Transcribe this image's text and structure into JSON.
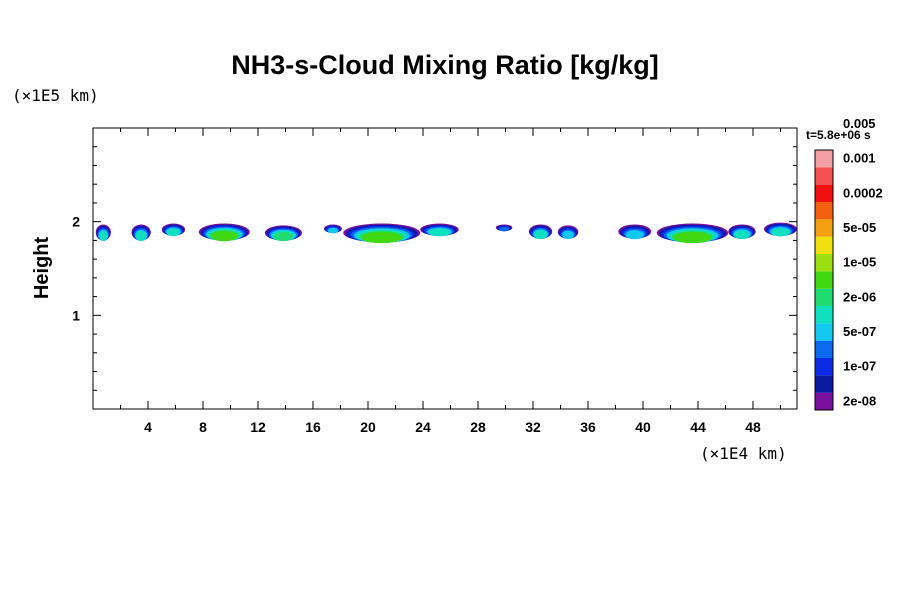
{
  "chart_data": {
    "type": "heatmap",
    "title": "NH3-s-Cloud Mixing Ratio [kg/kg]",
    "ylabel": "Height",
    "y_scale_label": "(×1E5 km)",
    "x_scale_label": "(×1E4 km)",
    "time_label": "t=5.8e+06 s",
    "xlim": [
      0,
      51.2
    ],
    "ylim": [
      0,
      3.0
    ],
    "x_ticks": [
      4,
      8,
      12,
      16,
      20,
      24,
      28,
      32,
      36,
      40,
      44,
      48
    ],
    "y_ticks": [
      1,
      2
    ],
    "colorbar": {
      "levels": [
        "2e-08",
        "1e-07",
        "5e-07",
        "2e-06",
        "1e-05",
        "5e-05",
        "0.0002",
        "0.001",
        "0.005"
      ],
      "colors": [
        "#7a0fa0",
        "#0a1aa0",
        "#0a2ae6",
        "#0a6af0",
        "#10c8f0",
        "#10e0c0",
        "#20dc70",
        "#40d810",
        "#9ae010",
        "#f0e010",
        "#f5a010",
        "#f56010",
        "#f01010",
        "#f55050",
        "#f5a0a0"
      ]
    },
    "cloud_patches": [
      {
        "x": [
          0.2,
          1.3
        ],
        "y": [
          1.8,
          1.97
        ],
        "level": 5
      },
      {
        "x": [
          2.8,
          4.2
        ],
        "y": [
          1.8,
          1.97
        ],
        "level": 5
      },
      {
        "x": [
          5.0,
          6.7
        ],
        "y": [
          1.85,
          1.98
        ],
        "level": 5
      },
      {
        "x": [
          7.7,
          11.4
        ],
        "y": [
          1.8,
          1.98
        ],
        "level": 7
      },
      {
        "x": [
          12.5,
          15.2
        ],
        "y": [
          1.8,
          1.96
        ],
        "level": 6
      },
      {
        "x": [
          16.8,
          18.1
        ],
        "y": [
          1.88,
          1.97
        ],
        "level": 4
      },
      {
        "x": [
          18.2,
          23.8
        ],
        "y": [
          1.78,
          1.98
        ],
        "level": 7
      },
      {
        "x": [
          23.8,
          26.6
        ],
        "y": [
          1.85,
          1.98
        ],
        "level": 5
      },
      {
        "x": [
          29.3,
          30.5
        ],
        "y": [
          1.9,
          1.97
        ],
        "level": 3
      },
      {
        "x": [
          31.7,
          33.4
        ],
        "y": [
          1.82,
          1.97
        ],
        "level": 5
      },
      {
        "x": [
          33.8,
          35.3
        ],
        "y": [
          1.82,
          1.96
        ],
        "level": 4
      },
      {
        "x": [
          38.2,
          40.6
        ],
        "y": [
          1.82,
          1.97
        ],
        "level": 4
      },
      {
        "x": [
          41.0,
          46.2
        ],
        "y": [
          1.78,
          1.98
        ],
        "level": 7
      },
      {
        "x": [
          46.2,
          48.2
        ],
        "y": [
          1.82,
          1.97
        ],
        "level": 5
      },
      {
        "x": [
          48.8,
          51.2
        ],
        "y": [
          1.85,
          1.99
        ],
        "level": 5
      }
    ]
  }
}
